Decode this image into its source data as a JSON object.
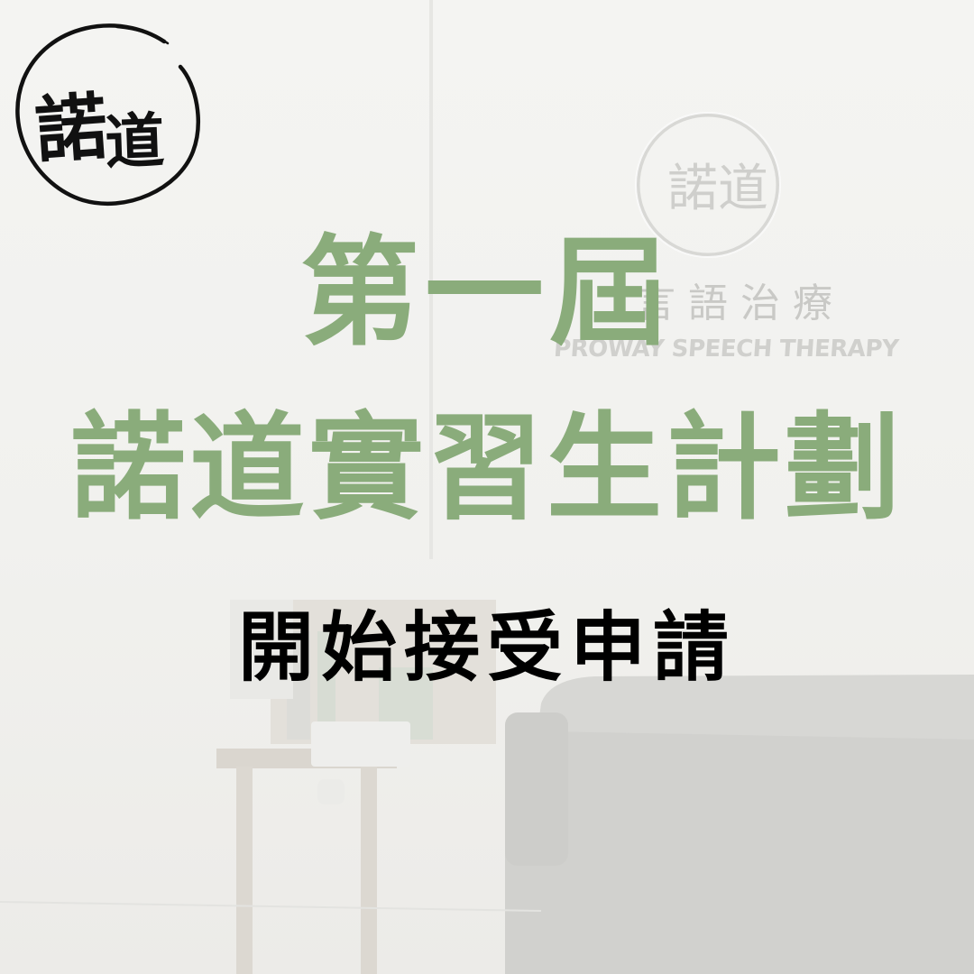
{
  "logo": {
    "text": "諾道",
    "icon": "brush-circle-seal-logo"
  },
  "background": {
    "sign_chinese": "言語治療",
    "sign_english": "PROWAY SPEECH THERAPY"
  },
  "headline": {
    "line1": "第一屆",
    "line2": "諾道實習生計劃"
  },
  "subtitle": "開始接受申請",
  "colors": {
    "accent_green": "#8aac7b",
    "subtitle_black": "#000000",
    "background": "#f3f3f1"
  }
}
